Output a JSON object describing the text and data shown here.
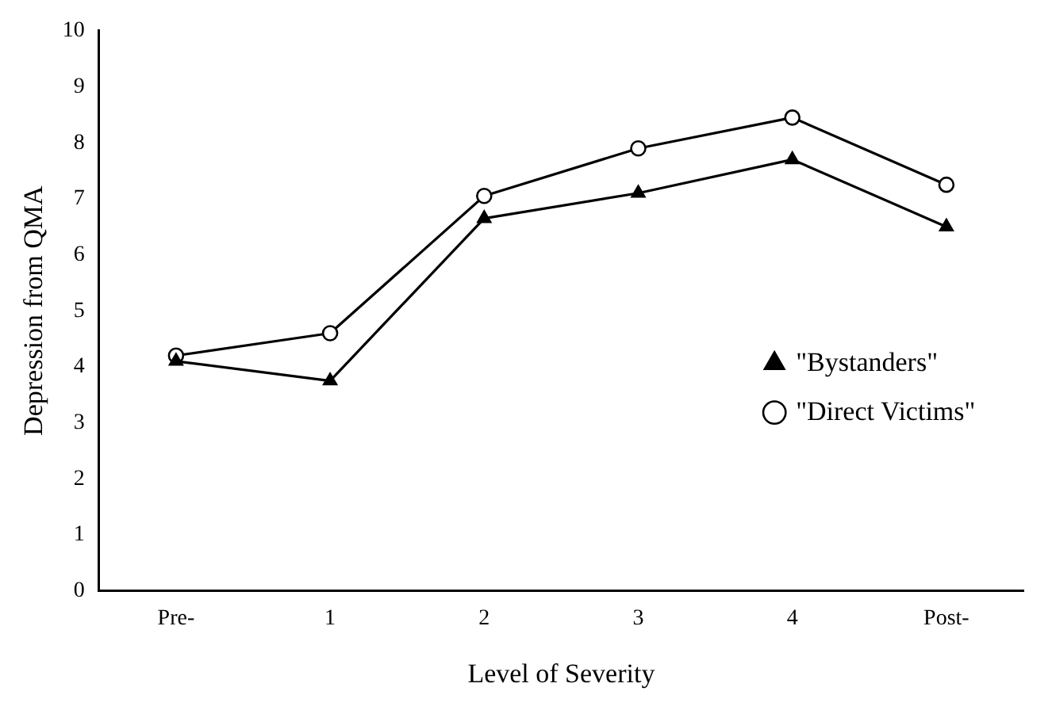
{
  "chart_data": {
    "type": "line",
    "xlabel": "Level of Severity",
    "ylabel": "Depression from QMA",
    "categories": [
      "Pre-",
      "1",
      "2",
      "3",
      "4",
      "Post-"
    ],
    "series": [
      {
        "name": "\"Direct Victims\"",
        "color": "#000000",
        "marker": "circle",
        "values": [
          4.2,
          4.6,
          7.05,
          7.9,
          8.45,
          7.25
        ]
      },
      {
        "name": "\"Bystanders\"",
        "color": "#000000",
        "marker": "triangle",
        "values": [
          4.1,
          3.75,
          6.65,
          7.1,
          7.7,
          6.5
        ]
      }
    ],
    "ylim": [
      0,
      10
    ],
    "yticks": [
      0,
      1,
      2,
      3,
      4,
      5,
      6,
      7,
      8,
      9,
      10
    ],
    "grid": false,
    "legend": "bottom right",
    "line_style": "solid"
  }
}
